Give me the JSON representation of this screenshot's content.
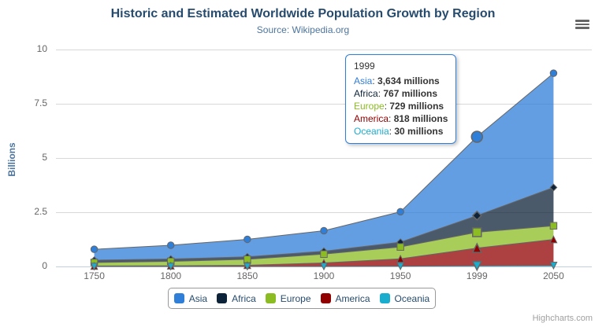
{
  "chart": {
    "title": "Historic and Estimated Worldwide Population Growth by Region",
    "subtitle": "Source: Wikipedia.org",
    "ylabel": "Billions",
    "credits": "Highcharts.com",
    "context_menu_icon": "hamburger-icon"
  },
  "chart_data": {
    "type": "area",
    "stacking": "normal",
    "title": "Historic and Estimated Worldwide Population Growth by Region",
    "subtitle": "Source: Wikipedia.org",
    "categories": [
      "1750",
      "1800",
      "1850",
      "1900",
      "1950",
      "1999",
      "2050"
    ],
    "values_unit": "millions",
    "series": [
      {
        "name": "Asia",
        "color": "#2f7ed8",
        "marker": "circle",
        "values": [
          502,
          635,
          809,
          947,
          1402,
          3634,
          5268
        ]
      },
      {
        "name": "Africa",
        "color": "#0d233a",
        "marker": "diamond",
        "values": [
          106,
          107,
          111,
          133,
          221,
          767,
          1766
        ]
      },
      {
        "name": "Europe",
        "color": "#8bbc21",
        "marker": "square",
        "values": [
          163,
          203,
          276,
          408,
          547,
          729,
          628
        ]
      },
      {
        "name": "America",
        "color": "#910000",
        "marker": "triangle",
        "values": [
          18,
          31,
          54,
          156,
          339,
          818,
          1201
        ]
      },
      {
        "name": "Oceania",
        "color": "#1aadce",
        "marker": "triangle-down",
        "values": [
          2,
          2,
          2,
          6,
          13,
          30,
          46
        ]
      }
    ],
    "ylabel": "Billions",
    "xlabel": "",
    "yticks": [
      0,
      2.5,
      5,
      7.5,
      10
    ],
    "ylim": [
      0,
      10
    ],
    "grid": true,
    "legend_position": "bottom",
    "hover_index": 5,
    "colors": {
      "grid": "#d8d8d8",
      "axis_line": "#c0d0e0",
      "series_outline": "#666666",
      "title_text": "#274b6d",
      "axis_text": "#666666"
    }
  },
  "tooltip": {
    "header": "1999",
    "border_color": "#2f7ed8",
    "rows": [
      {
        "name": "Asia",
        "value": "3,634 millions"
      },
      {
        "name": "Africa",
        "value": "767 millions"
      },
      {
        "name": "Europe",
        "value": "729 millions"
      },
      {
        "name": "America",
        "value": "818 millions"
      },
      {
        "name": "Oceania",
        "value": "30 millions"
      }
    ]
  }
}
